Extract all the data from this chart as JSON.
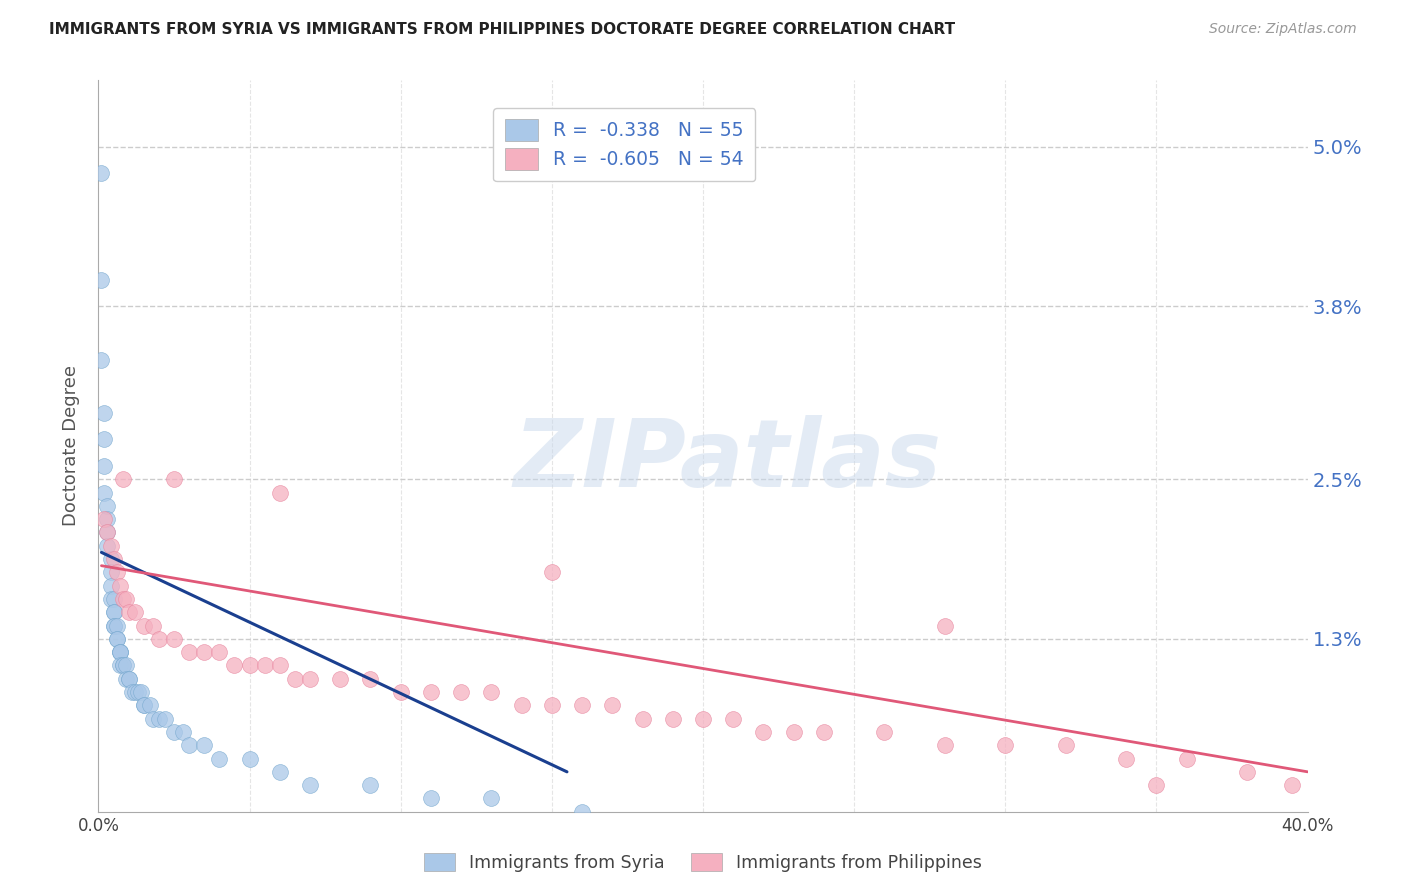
{
  "title": "IMMIGRANTS FROM SYRIA VS IMMIGRANTS FROM PHILIPPINES DOCTORATE DEGREE CORRELATION CHART",
  "source": "Source: ZipAtlas.com",
  "ylabel": "Doctorate Degree",
  "xlim": [
    0.0,
    0.4
  ],
  "ylim": [
    0.0,
    0.055
  ],
  "yticks": [
    0.013,
    0.025,
    0.038,
    0.05
  ],
  "ytick_labels": [
    "1.3%",
    "2.5%",
    "3.8%",
    "5.0%"
  ],
  "syria_color": "#aac8e8",
  "syria_edge_color": "#7aaad0",
  "syria_line_color": "#1a3f8f",
  "philippines_color": "#f5b0c0",
  "philippines_edge_color": "#e888a0",
  "philippines_line_color": "#e05878",
  "legend_text_color": "#4472c4",
  "syria_R": "-0.338",
  "syria_N": "55",
  "philippines_R": "-0.605",
  "philippines_N": "54",
  "watermark": "ZIPatlas",
  "syria_scatter_x": [
    0.001,
    0.001,
    0.001,
    0.002,
    0.002,
    0.002,
    0.002,
    0.003,
    0.003,
    0.003,
    0.003,
    0.004,
    0.004,
    0.004,
    0.004,
    0.005,
    0.005,
    0.005,
    0.005,
    0.005,
    0.006,
    0.006,
    0.006,
    0.007,
    0.007,
    0.007,
    0.007,
    0.008,
    0.008,
    0.009,
    0.009,
    0.01,
    0.01,
    0.011,
    0.012,
    0.013,
    0.014,
    0.015,
    0.015,
    0.017,
    0.018,
    0.02,
    0.022,
    0.025,
    0.028,
    0.03,
    0.035,
    0.04,
    0.05,
    0.06,
    0.07,
    0.09,
    0.11,
    0.13,
    0.16
  ],
  "syria_scatter_y": [
    0.048,
    0.04,
    0.034,
    0.03,
    0.028,
    0.026,
    0.024,
    0.023,
    0.022,
    0.021,
    0.02,
    0.019,
    0.018,
    0.017,
    0.016,
    0.016,
    0.015,
    0.015,
    0.014,
    0.014,
    0.014,
    0.013,
    0.013,
    0.012,
    0.012,
    0.012,
    0.011,
    0.011,
    0.011,
    0.011,
    0.01,
    0.01,
    0.01,
    0.009,
    0.009,
    0.009,
    0.009,
    0.008,
    0.008,
    0.008,
    0.007,
    0.007,
    0.007,
    0.006,
    0.006,
    0.005,
    0.005,
    0.004,
    0.004,
    0.003,
    0.002,
    0.002,
    0.001,
    0.001,
    0.0
  ],
  "syria_line_x0": 0.001,
  "syria_line_x1": 0.155,
  "syria_line_y0": 0.0195,
  "syria_line_y1": 0.003,
  "philippines_scatter_x": [
    0.002,
    0.003,
    0.004,
    0.005,
    0.006,
    0.007,
    0.008,
    0.009,
    0.01,
    0.012,
    0.015,
    0.018,
    0.02,
    0.025,
    0.03,
    0.035,
    0.04,
    0.045,
    0.05,
    0.055,
    0.06,
    0.065,
    0.07,
    0.08,
    0.09,
    0.1,
    0.11,
    0.12,
    0.13,
    0.14,
    0.15,
    0.16,
    0.17,
    0.18,
    0.19,
    0.2,
    0.21,
    0.22,
    0.23,
    0.24,
    0.26,
    0.28,
    0.3,
    0.32,
    0.34,
    0.36,
    0.38,
    0.395,
    0.008,
    0.025,
    0.06,
    0.15,
    0.28,
    0.35
  ],
  "philippines_scatter_y": [
    0.022,
    0.021,
    0.02,
    0.019,
    0.018,
    0.017,
    0.016,
    0.016,
    0.015,
    0.015,
    0.014,
    0.014,
    0.013,
    0.013,
    0.012,
    0.012,
    0.012,
    0.011,
    0.011,
    0.011,
    0.011,
    0.01,
    0.01,
    0.01,
    0.01,
    0.009,
    0.009,
    0.009,
    0.009,
    0.008,
    0.008,
    0.008,
    0.008,
    0.007,
    0.007,
    0.007,
    0.007,
    0.006,
    0.006,
    0.006,
    0.006,
    0.005,
    0.005,
    0.005,
    0.004,
    0.004,
    0.003,
    0.002,
    0.025,
    0.025,
    0.024,
    0.018,
    0.014,
    0.002
  ],
  "philippines_line_x0": 0.001,
  "philippines_line_x1": 0.4,
  "philippines_line_y0": 0.0185,
  "philippines_line_y1": 0.003
}
